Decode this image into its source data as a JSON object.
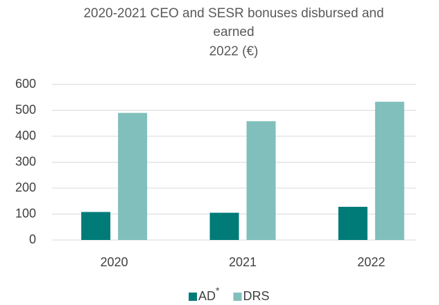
{
  "chart_data": {
    "type": "bar",
    "title": [
      "2020-2021 CEO and SESR bonuses disbursed and",
      "earned",
      "2022 (€)"
    ],
    "categories": [
      "2020",
      "2021",
      "2022"
    ],
    "series": [
      {
        "name": "AD*",
        "color": "#007b78",
        "values": [
          108,
          105,
          128
        ]
      },
      {
        "name": "DRS",
        "color": "#80bfbc",
        "values": [
          490,
          458,
          533
        ]
      }
    ],
    "ylim": [
      0,
      600
    ],
    "yticks": [
      0,
      100,
      200,
      300,
      400,
      500,
      600
    ],
    "grid": true,
    "legend": "bottom"
  }
}
